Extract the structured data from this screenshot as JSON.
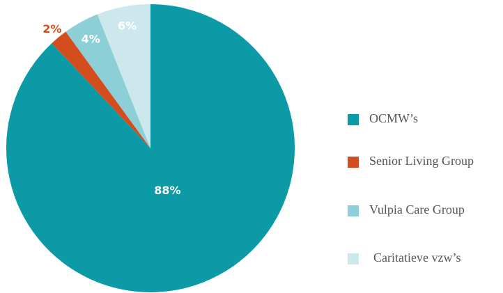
{
  "chart_data": {
    "type": "pie",
    "categories": [
      "OCMW’s",
      "Senior Living Group",
      "Vulpia Care Group",
      "Caritatieve vzw’s"
    ],
    "values": [
      88,
      2,
      4,
      6
    ],
    "value_labels": [
      "88%",
      "2%",
      "4%",
      "6%"
    ],
    "colors": [
      "#0b9aa6",
      "#d24e1e",
      "#8dcfd6",
      "#cde8ec"
    ]
  }
}
